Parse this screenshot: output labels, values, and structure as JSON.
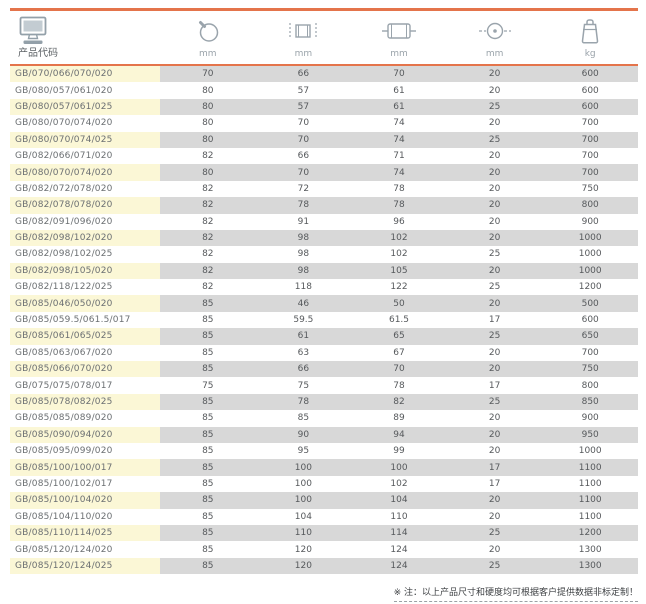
{
  "header": {
    "columns": [
      {
        "label": "产品代码",
        "icon": "monitor-icon"
      },
      {
        "unit": "mm",
        "icon": "ball-outer-diameter-icon"
      },
      {
        "unit": "mm",
        "icon": "width-section-icon"
      },
      {
        "unit": "mm",
        "icon": "roller-icon"
      },
      {
        "unit": "mm",
        "icon": "bore-diameter-icon"
      },
      {
        "unit": "kg",
        "icon": "weight-icon"
      }
    ]
  },
  "rows": [
    {
      "code": "GB/070/066/070/020",
      "values": [
        "70",
        "66",
        "70",
        "20",
        "600"
      ]
    },
    {
      "code": "GB/080/057/061/020",
      "values": [
        "80",
        "57",
        "61",
        "20",
        "600"
      ]
    },
    {
      "code": "GB/080/057/061/025",
      "values": [
        "80",
        "57",
        "61",
        "25",
        "600"
      ]
    },
    {
      "code": "GB/080/070/074/020",
      "values": [
        "80",
        "70",
        "74",
        "20",
        "700"
      ]
    },
    {
      "code": "GB/080/070/074/025",
      "values": [
        "80",
        "70",
        "74",
        "25",
        "700"
      ]
    },
    {
      "code": "GB/082/066/071/020",
      "values": [
        "82",
        "66",
        "71",
        "20",
        "700"
      ]
    },
    {
      "code": "GB/080/070/074/020",
      "values": [
        "80",
        "70",
        "74",
        "20",
        "700"
      ]
    },
    {
      "code": "GB/082/072/078/020",
      "values": [
        "82",
        "72",
        "78",
        "20",
        "750"
      ]
    },
    {
      "code": "GB/082/078/078/020",
      "values": [
        "82",
        "78",
        "78",
        "20",
        "800"
      ]
    },
    {
      "code": "GB/082/091/096/020",
      "values": [
        "82",
        "91",
        "96",
        "20",
        "900"
      ]
    },
    {
      "code": "GB/082/098/102/020",
      "values": [
        "82",
        "98",
        "102",
        "20",
        "1000"
      ]
    },
    {
      "code": "GB/082/098/102/025",
      "values": [
        "82",
        "98",
        "102",
        "25",
        "1000"
      ]
    },
    {
      "code": "GB/082/098/105/020",
      "values": [
        "82",
        "98",
        "105",
        "20",
        "1000"
      ]
    },
    {
      "code": "GB/082/118/122/025",
      "values": [
        "82",
        "118",
        "122",
        "25",
        "1200"
      ]
    },
    {
      "code": "GB/085/046/050/020",
      "values": [
        "85",
        "46",
        "50",
        "20",
        "500"
      ]
    },
    {
      "code": "GB/085/059.5/061.5/017",
      "values": [
        "85",
        "59.5",
        "61.5",
        "17",
        "600"
      ]
    },
    {
      "code": "GB/085/061/065/025",
      "values": [
        "85",
        "61",
        "65",
        "25",
        "650"
      ]
    },
    {
      "code": "GB/085/063/067/020",
      "values": [
        "85",
        "63",
        "67",
        "20",
        "700"
      ]
    },
    {
      "code": "GB/085/066/070/020",
      "values": [
        "85",
        "66",
        "70",
        "20",
        "750"
      ]
    },
    {
      "code": "GB/075/075/078/017",
      "values": [
        "75",
        "75",
        "78",
        "17",
        "800"
      ]
    },
    {
      "code": "GB/085/078/082/025",
      "values": [
        "85",
        "78",
        "82",
        "25",
        "850"
      ]
    },
    {
      "code": "GB/085/085/089/020",
      "values": [
        "85",
        "85",
        "89",
        "20",
        "900"
      ]
    },
    {
      "code": "GB/085/090/094/020",
      "values": [
        "85",
        "90",
        "94",
        "20",
        "950"
      ]
    },
    {
      "code": "GB/085/095/099/020",
      "values": [
        "85",
        "95",
        "99",
        "20",
        "1000"
      ]
    },
    {
      "code": "GB/085/100/100/017",
      "values": [
        "85",
        "100",
        "100",
        "17",
        "1100"
      ]
    },
    {
      "code": "GB/085/100/102/017",
      "values": [
        "85",
        "100",
        "102",
        "17",
        "1100"
      ]
    },
    {
      "code": "GB/085/100/104/020",
      "values": [
        "85",
        "100",
        "104",
        "20",
        "1100"
      ]
    },
    {
      "code": "GB/085/104/110/020",
      "values": [
        "85",
        "104",
        "110",
        "20",
        "1100"
      ]
    },
    {
      "code": "GB/085/110/114/025",
      "values": [
        "85",
        "110",
        "114",
        "25",
        "1200"
      ]
    },
    {
      "code": "GB/085/120/124/020",
      "values": [
        "85",
        "120",
        "124",
        "20",
        "1300"
      ]
    },
    {
      "code": "GB/085/120/124/025",
      "values": [
        "85",
        "120",
        "124",
        "25",
        "1300"
      ]
    }
  ],
  "footer": {
    "note": "※ 注：以上产品尺寸和硬度均可根据客户提供数据非标定制！"
  },
  "colors": {
    "accent": "#E4744B",
    "row_gray": "#D8D8D8",
    "row_yellow": "#FBF7D6"
  }
}
